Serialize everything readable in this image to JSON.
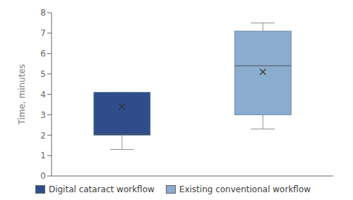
{
  "chart_data": {
    "type": "box",
    "ylabel": "Time, minutes",
    "ylim": [
      0,
      8
    ],
    "yticks": [
      0,
      1,
      2,
      3,
      4,
      5,
      6,
      7,
      8
    ],
    "grid": false,
    "legend": "bottom",
    "tick_labels": "y",
    "marker": "x",
    "series": [
      {
        "name": "Digital cataract workflow",
        "color": "#2e4d8a",
        "whislo": 1.3,
        "q1": 2.0,
        "med": 2.05,
        "q3": 4.1,
        "whishi": 4.1,
        "mean": 3.4
      },
      {
        "name": "Existing conventional workflow",
        "color": "#8aacce",
        "whislo": 2.3,
        "q1": 3.0,
        "med": 5.4,
        "q3": 7.1,
        "whishi": 7.5,
        "mean": 5.1
      }
    ]
  }
}
